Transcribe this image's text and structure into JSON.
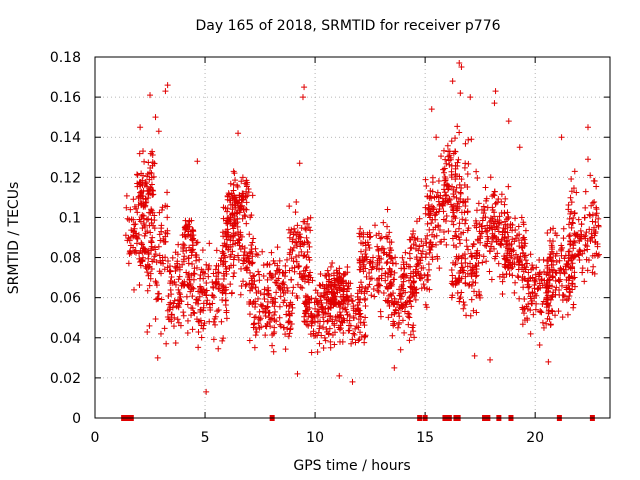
{
  "chart_data": {
    "type": "scatter",
    "title": "Day 165 of 2018, SRMTID for receiver p776",
    "xlabel": "GPS time / hours",
    "ylabel": "SRMTID / TECUs",
    "xlim": [
      0,
      23.4
    ],
    "ylim": [
      0,
      0.18
    ],
    "xticks": [
      0,
      5,
      10,
      15,
      20
    ],
    "yticks": [
      0,
      0.02,
      0.04,
      0.06,
      0.08,
      0.1,
      0.12,
      0.14,
      0.16,
      0.18
    ],
    "ytick_labels": [
      "0",
      "0.02",
      "0.04",
      "0.06",
      "0.08",
      "0.1",
      "0.12",
      "0.14",
      "0.16",
      "0.18"
    ],
    "grid": true,
    "series": [
      {
        "name": "SRMTID",
        "marker": "plus",
        "color": "#e00000",
        "bands": [
          {
            "x": [
              1.4,
              2.3
            ],
            "y_center": 0.09,
            "y_spread": 0.022
          },
          {
            "x": [
              1.9,
              2.7
            ],
            "y_center": 0.115,
            "y_spread": 0.015
          },
          {
            "x": [
              2.3,
              3.3
            ],
            "y_center": 0.08,
            "y_spread": 0.03
          },
          {
            "x": [
              3.3,
              6.0
            ],
            "y_center": 0.065,
            "y_spread": 0.022
          },
          {
            "x": [
              4.0,
              4.5
            ],
            "y_center": 0.09,
            "y_spread": 0.01
          },
          {
            "x": [
              5.8,
              7.2
            ],
            "y_center": 0.085,
            "y_spread": 0.02
          },
          {
            "x": [
              6.0,
              7.0
            ],
            "y_center": 0.108,
            "y_spread": 0.012
          },
          {
            "x": [
              7.0,
              9.0
            ],
            "y_center": 0.06,
            "y_spread": 0.022
          },
          {
            "x": [
              8.8,
              9.8
            ],
            "y_center": 0.08,
            "y_spread": 0.02
          },
          {
            "x": [
              9.5,
              12.3
            ],
            "y_center": 0.053,
            "y_spread": 0.016
          },
          {
            "x": [
              10.5,
              11.5
            ],
            "y_center": 0.065,
            "y_spread": 0.012
          },
          {
            "x": [
              12.0,
              13.5
            ],
            "y_center": 0.078,
            "y_spread": 0.02
          },
          {
            "x": [
              13.3,
              14.6
            ],
            "y_center": 0.06,
            "y_spread": 0.02
          },
          {
            "x": [
              14.3,
              15.2
            ],
            "y_center": 0.075,
            "y_spread": 0.018
          },
          {
            "x": [
              15.0,
              16.0
            ],
            "y_center": 0.1,
            "y_spread": 0.022
          },
          {
            "x": [
              15.8,
              17.0
            ],
            "y_center": 0.115,
            "y_spread": 0.025
          },
          {
            "x": [
              16.2,
              17.5
            ],
            "y_center": 0.075,
            "y_spread": 0.02
          },
          {
            "x": [
              17.3,
              18.8
            ],
            "y_center": 0.095,
            "y_spread": 0.02
          },
          {
            "x": [
              18.5,
              19.6
            ],
            "y_center": 0.082,
            "y_spread": 0.015
          },
          {
            "x": [
              19.4,
              20.8
            ],
            "y_center": 0.063,
            "y_spread": 0.018
          },
          {
            "x": [
              20.5,
              21.8
            ],
            "y_center": 0.072,
            "y_spread": 0.02
          },
          {
            "x": [
              21.5,
              22.9
            ],
            "y_center": 0.09,
            "y_spread": 0.022
          }
        ],
        "outliers": [
          {
            "x": 2.05,
            "y": 0.145
          },
          {
            "x": 2.5,
            "y": 0.161
          },
          {
            "x": 2.75,
            "y": 0.15
          },
          {
            "x": 3.3,
            "y": 0.166
          },
          {
            "x": 3.2,
            "y": 0.163
          },
          {
            "x": 2.9,
            "y": 0.143
          },
          {
            "x": 2.85,
            "y": 0.03
          },
          {
            "x": 4.65,
            "y": 0.128
          },
          {
            "x": 5.05,
            "y": 0.013
          },
          {
            "x": 6.5,
            "y": 0.142
          },
          {
            "x": 6.3,
            "y": 0.123
          },
          {
            "x": 9.5,
            "y": 0.165
          },
          {
            "x": 9.45,
            "y": 0.16
          },
          {
            "x": 9.3,
            "y": 0.127
          },
          {
            "x": 9.2,
            "y": 0.022
          },
          {
            "x": 11.1,
            "y": 0.021
          },
          {
            "x": 11.7,
            "y": 0.018
          },
          {
            "x": 13.6,
            "y": 0.025
          },
          {
            "x": 15.3,
            "y": 0.154
          },
          {
            "x": 15.5,
            "y": 0.14
          },
          {
            "x": 16.25,
            "y": 0.168
          },
          {
            "x": 16.55,
            "y": 0.177
          },
          {
            "x": 16.65,
            "y": 0.175
          },
          {
            "x": 16.6,
            "y": 0.162
          },
          {
            "x": 17.05,
            "y": 0.16
          },
          {
            "x": 17.1,
            "y": 0.139
          },
          {
            "x": 18.2,
            "y": 0.163
          },
          {
            "x": 18.15,
            "y": 0.157
          },
          {
            "x": 18.8,
            "y": 0.148
          },
          {
            "x": 17.95,
            "y": 0.029
          },
          {
            "x": 17.25,
            "y": 0.031
          },
          {
            "x": 19.3,
            "y": 0.135
          },
          {
            "x": 20.6,
            "y": 0.028
          },
          {
            "x": 21.2,
            "y": 0.14
          },
          {
            "x": 22.4,
            "y": 0.145
          },
          {
            "x": 22.4,
            "y": 0.129
          },
          {
            "x": 21.8,
            "y": 0.123
          },
          {
            "x": 22.5,
            "y": 0.121
          }
        ],
        "zero_markers": [
          1.3,
          1.45,
          1.55,
          1.65,
          8.05,
          14.75,
          15.0,
          15.9,
          16.0,
          16.1,
          16.4,
          16.5,
          17.7,
          17.85,
          18.35,
          18.9,
          21.1,
          22.6
        ]
      }
    ]
  }
}
